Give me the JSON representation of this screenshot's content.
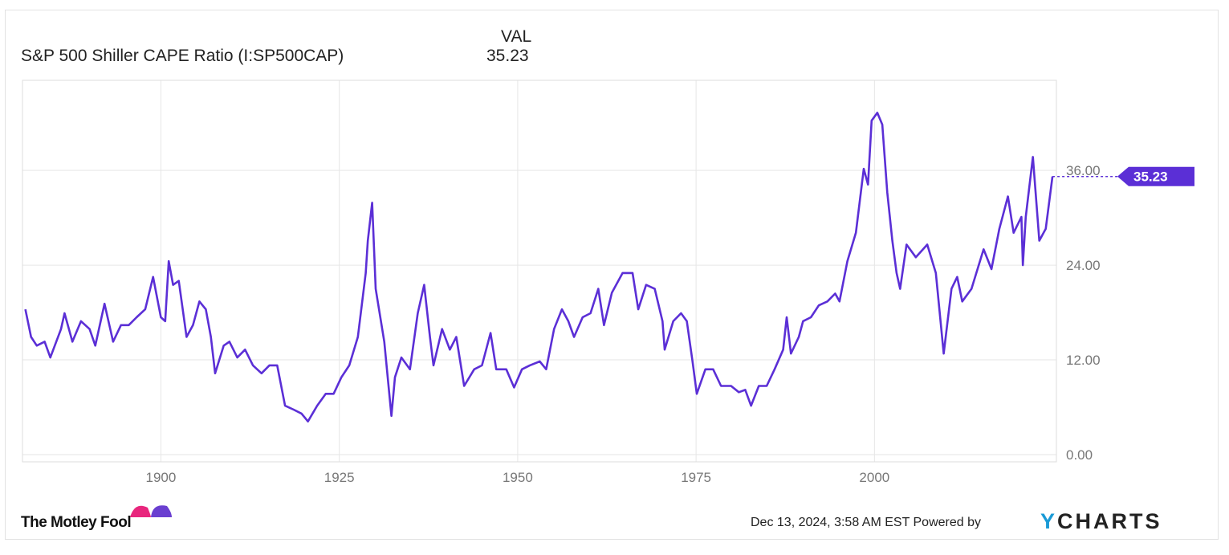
{
  "header": {
    "series_name": "S&P 500 Shiller CAPE Ratio (I:SP500CAP)",
    "value_header": "VAL",
    "value": "35.23"
  },
  "footer": {
    "brand": "The Motley Fool",
    "timestamp": "Dec 13, 2024, 3:58 AM EST",
    "powered_by": "Powered by",
    "ycharts_y": "Y",
    "ycharts_rest": "CHARTS"
  },
  "colors": {
    "line": "#5b2fd6",
    "grid": "#e6e6e6"
  },
  "chart_data": {
    "type": "line",
    "title": "S&P 500 Shiller CAPE Ratio (I:SP500CAP)",
    "xlabel": "",
    "ylabel": "",
    "xlim": [
      1880.6,
      2025.5
    ],
    "ylim": [
      0,
      48
    ],
    "x_ticks": [
      1900,
      1925,
      1950,
      1975,
      2000
    ],
    "x_tick_labels": [
      "1900",
      "1925",
      "1950",
      "1975",
      "2000"
    ],
    "y_ticks": [
      0,
      12,
      24,
      36
    ],
    "y_tick_labels": [
      "0.00",
      "12.00",
      "24.00",
      "36.00"
    ],
    "grid": true,
    "last_value_label": "35.23",
    "series": [
      {
        "name": "S&P 500 Shiller CAPE Ratio",
        "points": [
          [
            1881,
            18.4
          ],
          [
            1881.8,
            14.9
          ],
          [
            1882.6,
            13.8
          ],
          [
            1883.7,
            14.3
          ],
          [
            1884.5,
            12.3
          ],
          [
            1886,
            15.9
          ],
          [
            1886.5,
            17.9
          ],
          [
            1887.6,
            14.3
          ],
          [
            1888.8,
            16.9
          ],
          [
            1890,
            15.9
          ],
          [
            1890.8,
            13.8
          ],
          [
            1892.1,
            19.1
          ],
          [
            1893.3,
            14.3
          ],
          [
            1894.4,
            16.4
          ],
          [
            1895.5,
            16.4
          ],
          [
            1896.6,
            17.4
          ],
          [
            1897.8,
            18.4
          ],
          [
            1898.9,
            22.5
          ],
          [
            1900,
            17.4
          ],
          [
            1900.6,
            16.9
          ],
          [
            1901.1,
            24.5
          ],
          [
            1901.7,
            21.5
          ],
          [
            1902.5,
            22.0
          ],
          [
            1903.6,
            14.9
          ],
          [
            1904.5,
            16.4
          ],
          [
            1905.4,
            19.4
          ],
          [
            1906.3,
            18.4
          ],
          [
            1907,
            14.9
          ],
          [
            1907.6,
            10.3
          ],
          [
            1908.8,
            13.8
          ],
          [
            1909.6,
            14.3
          ],
          [
            1910.7,
            12.3
          ],
          [
            1911.8,
            13.3
          ],
          [
            1912.9,
            11.3
          ],
          [
            1914.1,
            10.3
          ],
          [
            1915.2,
            11.3
          ],
          [
            1916.3,
            11.3
          ],
          [
            1917.4,
            6.2
          ],
          [
            1918.6,
            5.7
          ],
          [
            1919.7,
            5.2
          ],
          [
            1920.6,
            4.2
          ],
          [
            1921.9,
            6.2
          ],
          [
            1923.1,
            7.7
          ],
          [
            1924.2,
            7.7
          ],
          [
            1925.3,
            9.8
          ],
          [
            1926.4,
            11.3
          ],
          [
            1927.6,
            14.9
          ],
          [
            1928.7,
            23.0
          ],
          [
            1929,
            27.1
          ],
          [
            1929.6,
            31.9
          ],
          [
            1930.1,
            21.0
          ],
          [
            1931.3,
            14.3
          ],
          [
            1932.3,
            4.9
          ],
          [
            1932.8,
            9.8
          ],
          [
            1933.7,
            12.3
          ],
          [
            1934.9,
            10.8
          ],
          [
            1936,
            17.9
          ],
          [
            1936.9,
            21.5
          ],
          [
            1937.7,
            14.9
          ],
          [
            1938.2,
            11.3
          ],
          [
            1939.4,
            15.9
          ],
          [
            1940.5,
            13.3
          ],
          [
            1941.4,
            14.9
          ],
          [
            1942.5,
            8.7
          ],
          [
            1943.9,
            10.8
          ],
          [
            1945,
            11.3
          ],
          [
            1946.2,
            15.4
          ],
          [
            1947,
            10.8
          ],
          [
            1948.4,
            10.8
          ],
          [
            1949.5,
            8.5
          ],
          [
            1950.6,
            10.8
          ],
          [
            1951.7,
            11.3
          ],
          [
            1953.1,
            11.8
          ],
          [
            1954,
            10.8
          ],
          [
            1955.1,
            15.9
          ],
          [
            1956.2,
            18.4
          ],
          [
            1957.1,
            16.9
          ],
          [
            1957.9,
            14.9
          ],
          [
            1959.1,
            17.4
          ],
          [
            1960.2,
            17.9
          ],
          [
            1961.3,
            21.0
          ],
          [
            1962.1,
            16.4
          ],
          [
            1963.2,
            20.5
          ],
          [
            1964.7,
            23.0
          ],
          [
            1966.1,
            23.0
          ],
          [
            1966.9,
            18.4
          ],
          [
            1968,
            21.5
          ],
          [
            1969.2,
            21.0
          ],
          [
            1970.3,
            16.9
          ],
          [
            1970.6,
            13.3
          ],
          [
            1971.8,
            16.9
          ],
          [
            1972.9,
            17.9
          ],
          [
            1973.7,
            16.9
          ],
          [
            1974.5,
            11.8
          ],
          [
            1975.1,
            7.7
          ],
          [
            1976.3,
            10.8
          ],
          [
            1977.4,
            10.8
          ],
          [
            1978.5,
            8.7
          ],
          [
            1979.9,
            8.7
          ],
          [
            1981,
            7.9
          ],
          [
            1981.9,
            8.2
          ],
          [
            1982.7,
            6.2
          ],
          [
            1983.8,
            8.7
          ],
          [
            1984.9,
            8.7
          ],
          [
            1986,
            10.8
          ],
          [
            1987.2,
            13.3
          ],
          [
            1987.7,
            17.4
          ],
          [
            1988.3,
            12.8
          ],
          [
            1989.4,
            14.9
          ],
          [
            1990,
            16.9
          ],
          [
            1991.1,
            17.4
          ],
          [
            1992.2,
            18.9
          ],
          [
            1993.4,
            19.4
          ],
          [
            1994.5,
            20.4
          ],
          [
            1995.1,
            19.4
          ],
          [
            1996.2,
            24.5
          ],
          [
            1997.4,
            28.1
          ],
          [
            1998.5,
            36.2
          ],
          [
            1999.1,
            34.2
          ],
          [
            1999.6,
            42.3
          ],
          [
            2000.4,
            43.3
          ],
          [
            2001.1,
            41.8
          ],
          [
            2001.8,
            33.2
          ],
          [
            2002.5,
            27.1
          ],
          [
            2003.1,
            23.0
          ],
          [
            2003.6,
            21.0
          ],
          [
            2004.5,
            26.6
          ],
          [
            2005.8,
            25.0
          ],
          [
            2007.4,
            26.6
          ],
          [
            2008.6,
            23.0
          ],
          [
            2009.7,
            12.8
          ],
          [
            2010.8,
            21.0
          ],
          [
            2011.6,
            22.5
          ],
          [
            2012.3,
            19.4
          ],
          [
            2013.6,
            21.0
          ],
          [
            2015.3,
            26.0
          ],
          [
            2016.4,
            23.5
          ],
          [
            2017.5,
            28.6
          ],
          [
            2018.7,
            32.7
          ],
          [
            2019.5,
            28.1
          ],
          [
            2020.6,
            30.1
          ],
          [
            2020.8,
            24.0
          ],
          [
            2021.2,
            30.1
          ],
          [
            2022.2,
            37.7
          ],
          [
            2023.1,
            27.1
          ],
          [
            2024,
            28.6
          ],
          [
            2024.95,
            35.23
          ]
        ]
      }
    ]
  }
}
